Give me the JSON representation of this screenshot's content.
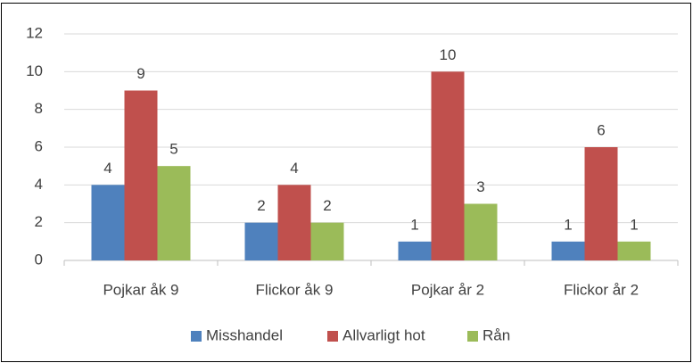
{
  "chart_data": {
    "type": "bar",
    "categories": [
      "Pojkar åk 9",
      "Flickor åk 9",
      "Pojkar år 2",
      "Flickor år 2"
    ],
    "series": [
      {
        "name": "Misshandel",
        "color": "#4f81bd",
        "values": [
          4,
          2,
          1,
          1
        ]
      },
      {
        "name": "Allvarligt hot",
        "color": "#c0504d",
        "values": [
          9,
          4,
          10,
          6
        ]
      },
      {
        "name": "Rån",
        "color": "#9bbb59",
        "values": [
          5,
          2,
          3,
          1
        ]
      }
    ],
    "ylim": [
      0,
      12
    ],
    "yticks": [
      0,
      2,
      4,
      6,
      8,
      10,
      12
    ],
    "grid": true,
    "legend": "bottom"
  }
}
